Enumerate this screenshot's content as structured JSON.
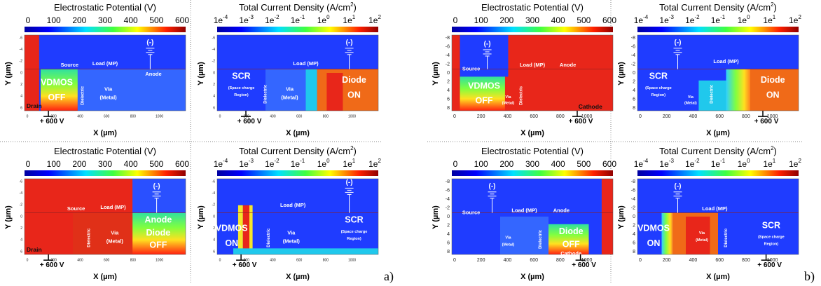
{
  "panels": [
    {
      "title": [
        {
          "text": "Electrostatic Potential (V)"
        }
      ],
      "colorbar": [
        0,
        100,
        200,
        300,
        400,
        500,
        600
      ],
      "y_label": "Y (µm)",
      "x_label": "X (µm)",
      "yticks": [
        -6,
        -4,
        -2,
        0,
        2,
        4,
        6
      ],
      "xticks": [
        0,
        200,
        400,
        600,
        800,
        1000
      ],
      "annotations": [
        "(-)",
        "Source",
        "Load (MP)",
        "Anode",
        "VDMOS",
        "OFF",
        "Dielectric",
        "Via",
        "(Metal)",
        "Drain",
        "+ 600 V"
      ]
    },
    {
      "title": [
        {
          "text": "Total Current Density (A/cm"
        },
        {
          "sup": "2"
        },
        {
          "text": ")"
        }
      ],
      "colorbar": [
        {
          "base": "1e",
          "sup": "-4"
        },
        {
          "base": "1e",
          "sup": "-3"
        },
        {
          "base": "1e",
          "sup": "-2"
        },
        {
          "base": "1e",
          "sup": "-1"
        },
        {
          "base": "1e",
          "sup": "0"
        },
        {
          "base": "1e",
          "sup": "1"
        },
        {
          "base": "1e",
          "sup": "2"
        }
      ],
      "y_label": "Y (µm)",
      "x_label": "X (µm)",
      "yticks": [
        -6,
        -4,
        -2,
        0,
        2,
        4,
        6
      ],
      "xticks": [
        0,
        200,
        400,
        600,
        800,
        1000
      ],
      "annotations": [
        "(-)",
        "Load (MP)",
        "SCR",
        "(Space charge",
        "Region)",
        "Dielectric",
        "Via",
        "(Metal)",
        "Diode",
        "ON",
        "+ 600 V"
      ]
    },
    {
      "title": [
        {
          "text": "Electrostatic Potential (V)"
        }
      ],
      "colorbar": [
        0,
        100,
        200,
        300,
        400,
        500,
        600
      ],
      "y_label": "Y (µm)",
      "x_label": "X (µm)",
      "yticks": [
        -6,
        -4,
        -2,
        0,
        2,
        4,
        6
      ],
      "xticks": [
        0,
        200,
        400,
        600,
        800,
        1000
      ],
      "annotations": [
        "(-)",
        "Source",
        "Load (MP)",
        "Anode",
        "Diode",
        "OFF",
        "Dielectric",
        "Via",
        "(Metal)",
        "Drain",
        "+ 600 V"
      ]
    },
    {
      "title": [
        {
          "text": "Total Current Density (A/cm"
        },
        {
          "sup": "2"
        },
        {
          "text": ")"
        }
      ],
      "colorbar": [
        {
          "base": "1e",
          "sup": "-4"
        },
        {
          "base": "1e",
          "sup": "-3"
        },
        {
          "base": "1e",
          "sup": "-2"
        },
        {
          "base": "1e",
          "sup": "-1"
        },
        {
          "base": "1e",
          "sup": "0"
        },
        {
          "base": "1e",
          "sup": "1"
        },
        {
          "base": "1e",
          "sup": "2"
        }
      ],
      "y_label": "Y (µm)",
      "x_label": "X (µm)",
      "yticks": [
        -6,
        -4,
        -2,
        0,
        2,
        4,
        6
      ],
      "xticks": [
        0,
        200,
        400,
        600,
        800,
        1000
      ],
      "annotations": [
        "(-)",
        "Load (MP)",
        "VDMOS",
        "ON",
        "Dielectric",
        "Via",
        "(Metal)",
        "SCR",
        "(Space charge",
        "Region)",
        "+ 600 V"
      ]
    },
    {
      "title": [
        {
          "text": "Electrostatic Potential (V)"
        }
      ],
      "colorbar": [
        0,
        100,
        200,
        300,
        400,
        500,
        600
      ],
      "y_label": "Y (µm)",
      "x_label": "X (µm)",
      "yticks": [
        -8,
        -6,
        -4,
        -2,
        0,
        2,
        4,
        6,
        8
      ],
      "xticks": [
        0,
        200,
        400,
        600,
        800,
        1000
      ],
      "annotations": [
        "(-)",
        "Source",
        "Load (MP)",
        "Anode",
        "VDMOS",
        "OFF",
        "Via",
        "(Metal)",
        "Dielectric",
        "Cathode",
        "+ 600 V"
      ]
    },
    {
      "title": [
        {
          "text": "Total Current Density (A/cm"
        },
        {
          "sup": "2"
        },
        {
          "text": ")"
        }
      ],
      "colorbar": [
        {
          "base": "1e",
          "sup": "-4"
        },
        {
          "base": "1e",
          "sup": "-3"
        },
        {
          "base": "1e",
          "sup": "-2"
        },
        {
          "base": "1e",
          "sup": "-1"
        },
        {
          "base": "1e",
          "sup": "0"
        },
        {
          "base": "1e",
          "sup": "1"
        },
        {
          "base": "1e",
          "sup": "2"
        }
      ],
      "y_label": "Y (µm)",
      "x_label": "X (µm)",
      "yticks": [
        -8,
        -6,
        -4,
        -2,
        0,
        2,
        4,
        6,
        8
      ],
      "xticks": [
        0,
        200,
        400,
        600,
        800,
        1000
      ],
      "annotations": [
        "(-)",
        "Load (MP)",
        "SCR",
        "(Space charge",
        "Region)",
        "Via",
        "(Metal)",
        "Dielectric",
        "Diode",
        "ON",
        "+ 600 V"
      ]
    },
    {
      "title": [
        {
          "text": "Electrostatic Potential (V)"
        }
      ],
      "colorbar": [
        0,
        100,
        200,
        300,
        400,
        500,
        600
      ],
      "y_label": "Y (µm)",
      "x_label": "X (µm)",
      "yticks": [
        -8,
        -6,
        -4,
        -2,
        0,
        2,
        4,
        6,
        8
      ],
      "xticks": [
        0,
        200,
        400,
        600,
        800,
        1000
      ],
      "annotations": [
        "(-)",
        "Source",
        "Load (MP)",
        "Anode",
        "Via",
        "(Metal)",
        "Dielectric",
        "Diode",
        "OFF",
        "Cathode",
        "+ 600 V"
      ]
    },
    {
      "title": [
        {
          "text": "Total Current Density (A/cm"
        },
        {
          "sup": "2"
        },
        {
          "text": ")"
        }
      ],
      "colorbar": [
        {
          "base": "1e",
          "sup": "-4"
        },
        {
          "base": "1e",
          "sup": "-3"
        },
        {
          "base": "1e",
          "sup": "-2"
        },
        {
          "base": "1e",
          "sup": "-1"
        },
        {
          "base": "1e",
          "sup": "0"
        },
        {
          "base": "1e",
          "sup": "1"
        },
        {
          "base": "1e",
          "sup": "2"
        }
      ],
      "y_label": "Y (µm)",
      "x_label": "X (µm)",
      "yticks": [
        -8,
        -6,
        -4,
        -2,
        0,
        2,
        4,
        6,
        8
      ],
      "xticks": [
        0,
        200,
        400,
        600,
        800,
        1000
      ],
      "annotations": [
        "(-)",
        "Load (MP)",
        "VDMOS",
        "ON",
        "Via",
        "(Metal)",
        "Dielectric",
        "SCR",
        "(Space charge",
        "Region)",
        "+ 600 V"
      ]
    }
  ],
  "figure_labels": [
    "a)",
    "b)"
  ]
}
